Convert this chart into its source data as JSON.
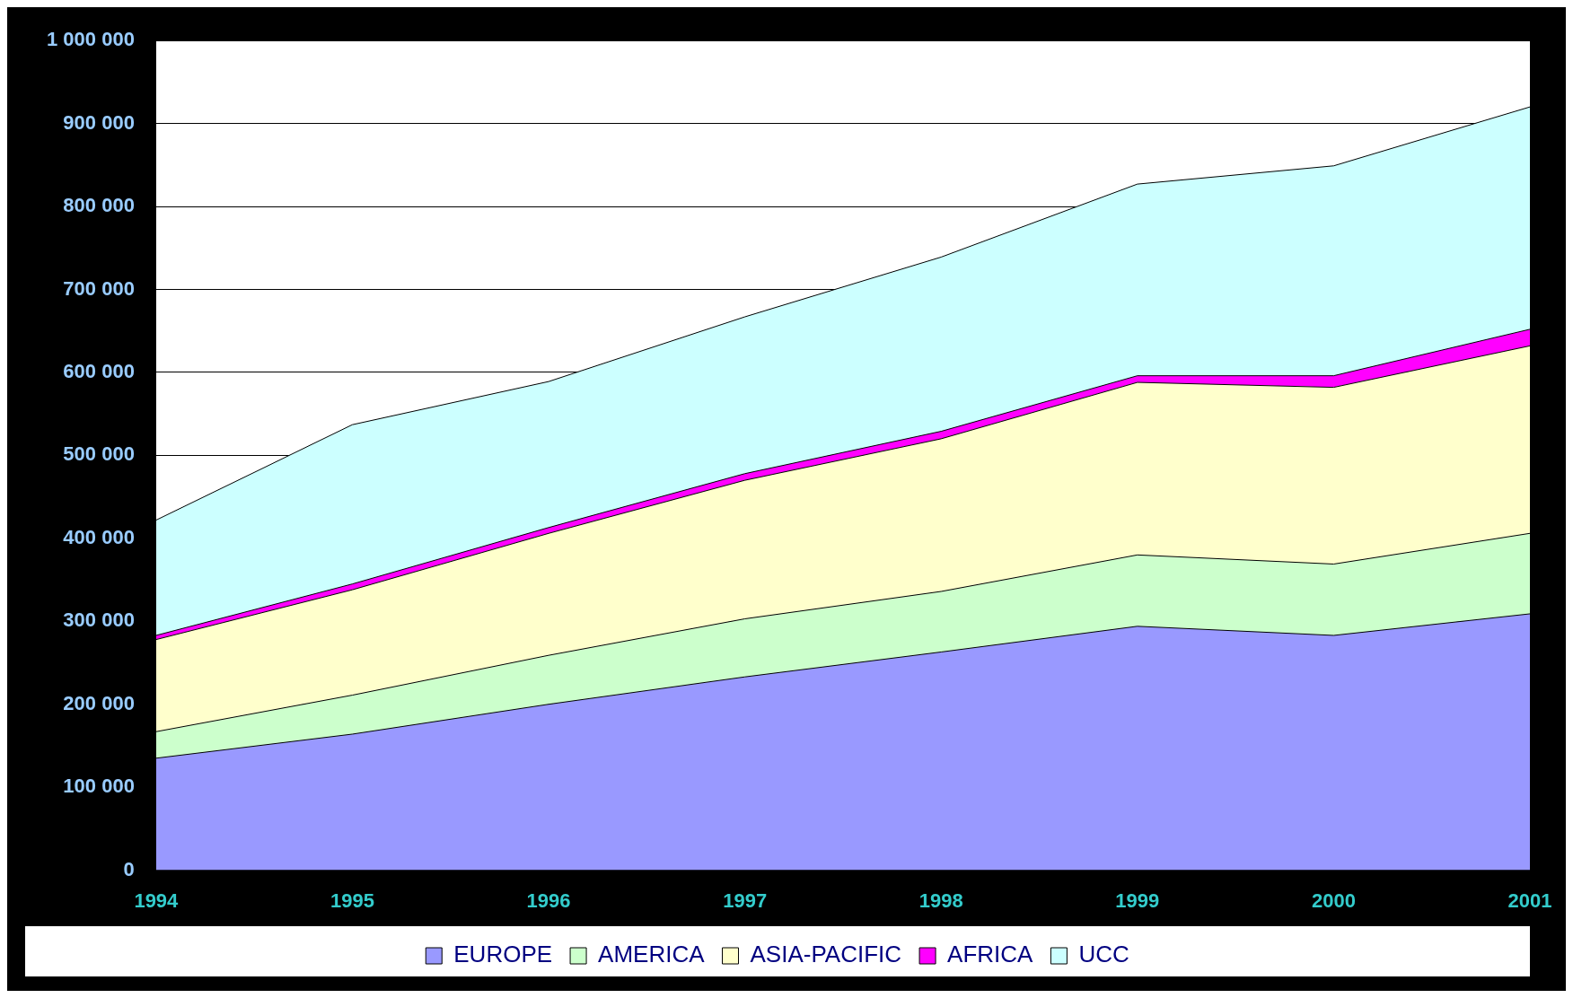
{
  "chart_data": {
    "type": "area",
    "stacked": true,
    "categories": [
      "1994",
      "1995",
      "1996",
      "1997",
      "1998",
      "1999",
      "2000",
      "2001"
    ],
    "series": [
      {
        "name": "EUROPE",
        "color": "#9999ff",
        "values": [
          135000,
          164000,
          200000,
          233000,
          263000,
          294000,
          283000,
          309000
        ]
      },
      {
        "name": "AMERICA",
        "color": "#ccffcc",
        "values": [
          32000,
          47000,
          59000,
          70000,
          73000,
          86000,
          86000,
          97000
        ]
      },
      {
        "name": "ASIA-PACIFIC",
        "color": "#ffffcc",
        "values": [
          111000,
          127000,
          147000,
          167000,
          184000,
          208000,
          213000,
          226000
        ]
      },
      {
        "name": "AFRICA",
        "color": "#ff00ff",
        "values": [
          5000,
          7000,
          7000,
          8000,
          9000,
          8000,
          14000,
          20000
        ]
      },
      {
        "name": "UCC",
        "color": "#ccffff",
        "values": [
          139000,
          192000,
          176000,
          189000,
          210000,
          231000,
          253000,
          268000
        ]
      }
    ],
    "ylim": [
      0,
      1000000
    ],
    "yticks": [
      0,
      {
        "value": 100000,
        "label": "100 000"
      },
      {
        "value": 200000,
        "label": "200 000"
      },
      {
        "value": 300000,
        "label": "300 000"
      },
      {
        "value": 400000,
        "label": "400 000"
      },
      {
        "value": 500000,
        "label": "500 000"
      },
      {
        "value": 600000,
        "label": "600 000"
      },
      {
        "value": 700000,
        "label": "700 000"
      },
      {
        "value": 800000,
        "label": "800 000"
      },
      {
        "value": 900000,
        "label": "900 000"
      },
      {
        "value": 1000000,
        "label": "1 000 000"
      }
    ],
    "grid": "y",
    "legend": "bottom"
  }
}
